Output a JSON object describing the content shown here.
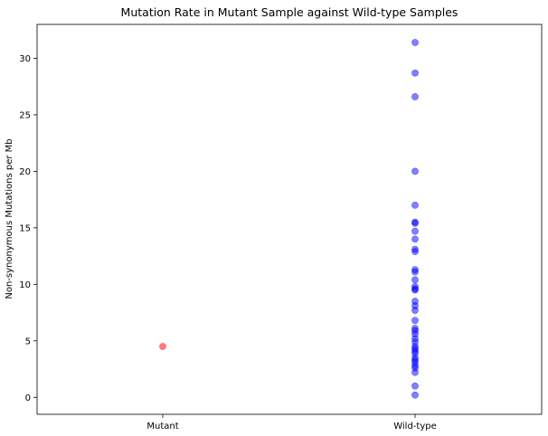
{
  "chart_data": {
    "type": "scatter",
    "title": "Mutation Rate in Mutant Sample against Wild-type Samples",
    "xlabel": "",
    "ylabel": "Non-synonymous Mutations per Mb",
    "categories": [
      "Mutant",
      "Wild-type"
    ],
    "ylim": [
      -1.5,
      33
    ],
    "yticks": [
      0,
      5,
      10,
      15,
      20,
      25,
      30
    ],
    "grid": false,
    "series": [
      {
        "category": "Mutant",
        "color": "#ff0000",
        "values": [
          4.5
        ]
      },
      {
        "category": "Wild-type",
        "color": "#0000ff",
        "values": [
          31.4,
          28.7,
          26.6,
          20.0,
          17.0,
          15.5,
          15.4,
          14.7,
          14.0,
          13.1,
          12.9,
          11.3,
          11.1,
          10.4,
          9.8,
          9.6,
          9.5,
          8.5,
          8.1,
          7.7,
          6.8,
          6.1,
          5.9,
          5.6,
          5.2,
          4.9,
          4.5,
          4.3,
          4.1,
          3.9,
          3.5,
          3.3,
          3.1,
          2.8,
          2.6,
          2.2,
          1.0,
          0.2
        ]
      }
    ]
  }
}
